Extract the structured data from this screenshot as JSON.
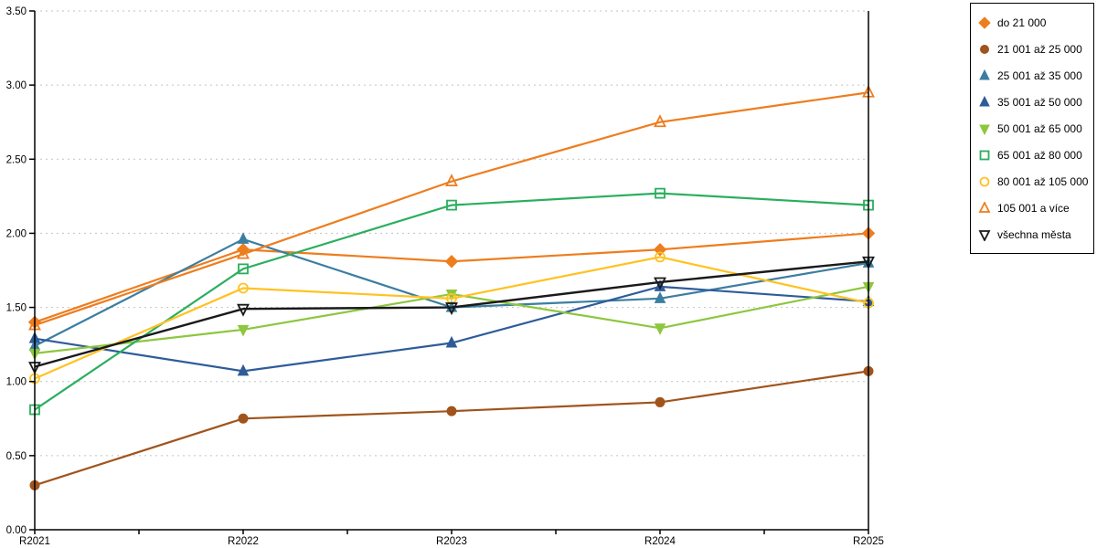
{
  "chart_data": {
    "type": "line",
    "title": "",
    "xlabel": "",
    "ylabel": "",
    "categories": [
      "R2021",
      "R2022",
      "R2023",
      "R2024",
      "R2025"
    ],
    "ylim": [
      0,
      3.5
    ],
    "ytick_step": 0.5,
    "ytick_labels": [
      "0.00",
      "0.50",
      "1.00",
      "1.50",
      "2.00",
      "2.50",
      "3.00",
      "3.50"
    ],
    "grid": "horizontal-dotted",
    "grid_color": "#c2c2c2",
    "axis_color": "#000000",
    "legend_position": "right",
    "series": [
      {
        "name": "do 21 000",
        "marker": "diamond",
        "fill": "filled",
        "color": "#ee7d1e",
        "values": [
          1.4,
          1.89,
          1.81,
          1.89,
          2.0
        ]
      },
      {
        "name": "21 001 až 25 000",
        "marker": "circle",
        "fill": "filled",
        "color": "#a0541c",
        "values": [
          0.3,
          0.75,
          0.8,
          0.86,
          1.07
        ]
      },
      {
        "name": "25 001 až 35 000",
        "marker": "triangle-up",
        "fill": "filled",
        "color": "#3b7ea1",
        "values": [
          1.24,
          1.96,
          1.5,
          1.56,
          1.8
        ]
      },
      {
        "name": "35 001 až 50 000",
        "marker": "triangle-up",
        "fill": "filled",
        "color": "#2e5c99",
        "values": [
          1.29,
          1.07,
          1.26,
          1.64,
          1.54
        ]
      },
      {
        "name": "50 001 až 65 000",
        "marker": "triangle-down",
        "fill": "filled",
        "color": "#8dc63f",
        "values": [
          1.19,
          1.35,
          1.59,
          1.36,
          1.64
        ]
      },
      {
        "name": "65 001 až 80 000",
        "marker": "square",
        "fill": "hollow",
        "color": "#2bae5e",
        "values": [
          0.81,
          1.76,
          2.19,
          2.27,
          2.19
        ]
      },
      {
        "name": "80 001 až 105 000",
        "marker": "circle",
        "fill": "hollow",
        "color": "#ffc222",
        "values": [
          1.02,
          1.63,
          1.56,
          1.84,
          1.53
        ]
      },
      {
        "name": "105 001 a více",
        "marker": "triangle-up",
        "fill": "hollow",
        "color": "#ee7d1e",
        "values": [
          1.38,
          1.86,
          2.35,
          2.75,
          2.95
        ]
      },
      {
        "name": "všechna města",
        "marker": "triangle-down",
        "fill": "hollow",
        "color": "#1a1a1a",
        "values": [
          1.1,
          1.49,
          1.5,
          1.67,
          1.81
        ]
      }
    ]
  }
}
